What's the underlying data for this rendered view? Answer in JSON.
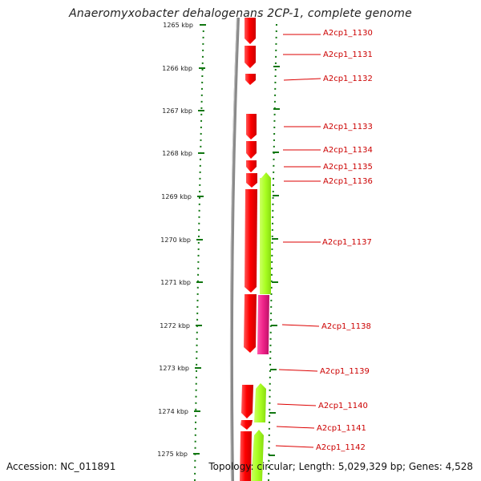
{
  "title": "Anaeromyxobacter dehalogenans 2CP-1, complete genome",
  "footer": {
    "accession": "Accession: NC_011891",
    "summary": "Topology: circular; Length: 5,029,329 bp; Genes: 4,528"
  },
  "colors": {
    "forward_gene": "#ff0000",
    "reverse_gene_green": "#aaff22",
    "reverse_gene_magenta": "#ee2288",
    "backbone": "#888888",
    "ticks": "#117711",
    "label_text": "#cc0000",
    "leader_line": "#dd0000"
  },
  "scale": {
    "unit": "kbp",
    "ticks": [
      {
        "label": "1265 kbp"
      },
      {
        "label": "1266 kbp"
      },
      {
        "label": "1267 kbp"
      },
      {
        "label": "1268 kbp"
      },
      {
        "label": "1269 kbp"
      },
      {
        "label": "1270 kbp"
      },
      {
        "label": "1271 kbp"
      },
      {
        "label": "1272 kbp"
      },
      {
        "label": "1273 kbp"
      },
      {
        "label": "1274 kbp"
      },
      {
        "label": "1275 kbp"
      }
    ]
  },
  "genes": [
    {
      "name": "A2cp1_1130"
    },
    {
      "name": "A2cp1_1131"
    },
    {
      "name": "A2cp1_1132"
    },
    {
      "name": "A2cp1_1133"
    },
    {
      "name": "A2cp1_1134"
    },
    {
      "name": "A2cp1_1135"
    },
    {
      "name": "A2cp1_1136"
    },
    {
      "name": "A2cp1_1137"
    },
    {
      "name": "A2cp1_1138"
    },
    {
      "name": "A2cp1_1139"
    },
    {
      "name": "A2cp1_1140"
    },
    {
      "name": "A2cp1_1141"
    },
    {
      "name": "A2cp1_1142"
    }
  ]
}
